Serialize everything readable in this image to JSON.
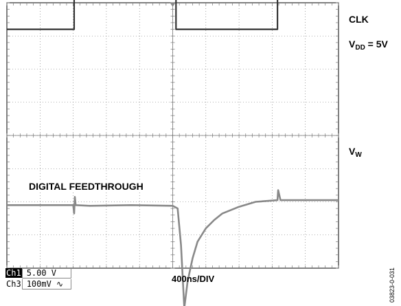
{
  "chart_data": {
    "type": "line",
    "title": "",
    "xlabel": "400ns/DIV",
    "ylabel": "",
    "x_divisions": 10,
    "y_divisions": 8,
    "x_unit_per_div_ns": 400,
    "grid": true,
    "series": [
      {
        "name": "CLK",
        "channel": "Ch1",
        "scale": "5.00 V",
        "color": "#333333",
        "x_ns": [
          0,
          812,
          812,
          2040,
          2040,
          3264,
          3264,
          4000
        ],
        "y_div": [
          3.2,
          3.2,
          5.45,
          5.45,
          3.2,
          3.2,
          5.45,
          5.45
        ]
      },
      {
        "name": "VW",
        "channel": "Ch3",
        "scale": "100mV ∿",
        "color": "#888888",
        "x_ns": [
          0,
          800,
          812,
          820,
          830,
          1000,
          1500,
          2000,
          2060,
          2100,
          2140,
          2180,
          2240,
          2300,
          2400,
          2500,
          2600,
          2800,
          3000,
          3264,
          3272,
          3300,
          3600,
          4000
        ],
        "y_div": [
          -2.1,
          -2.1,
          -2.35,
          -1.85,
          -2.1,
          -2.12,
          -2.1,
          -2.12,
          -2.2,
          -3.3,
          -5.2,
          -4.4,
          -3.7,
          -3.2,
          -2.8,
          -2.55,
          -2.35,
          -2.15,
          -2.0,
          -1.95,
          -1.65,
          -1.95,
          -1.95,
          -1.95
        ]
      }
    ],
    "annotations": {
      "clk_label": "CLK",
      "vdd_base": "V",
      "vdd_sub": "DD",
      "vdd_rest": " = 5V",
      "vw_base": "V",
      "vw_sub": "W",
      "feedthrough": "DIGITAL FEEDTHROUGH"
    }
  },
  "channels": {
    "ch1_tag": "Ch1",
    "ch1_value": "5.00 V",
    "ch3_tag": "Ch3",
    "ch3_value": "100mV ∿"
  },
  "timebase": "400ns/DIV",
  "figure_id": "03823-0-031"
}
